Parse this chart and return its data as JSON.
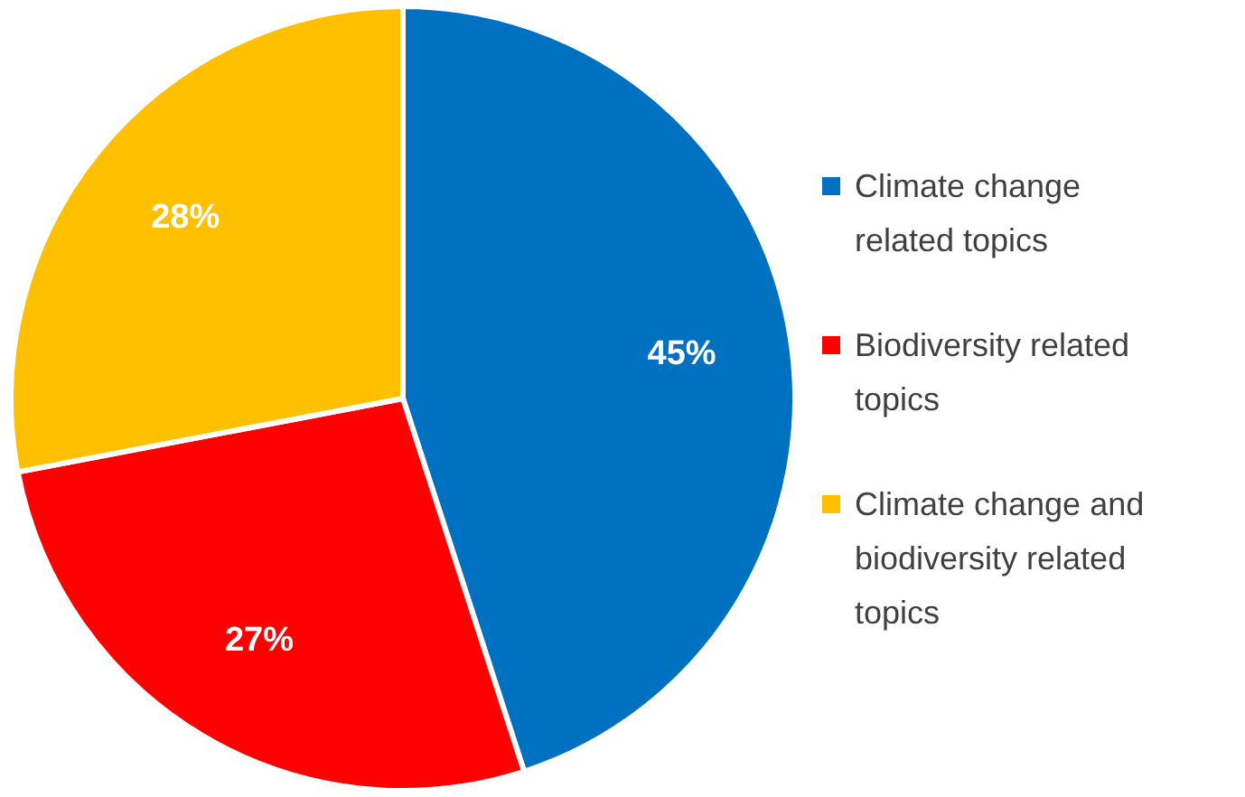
{
  "chart_data": {
    "type": "pie",
    "categories": [
      "Climate change related topics",
      "Biodiversity related topics",
      "Climate change and biodiversity related topics"
    ],
    "values": [
      45,
      27,
      28
    ],
    "colors": [
      "#0070c0",
      "#ff0000",
      "#ffc000"
    ],
    "value_labels": [
      "45%",
      "27%",
      "28%"
    ],
    "legend": "right"
  }
}
